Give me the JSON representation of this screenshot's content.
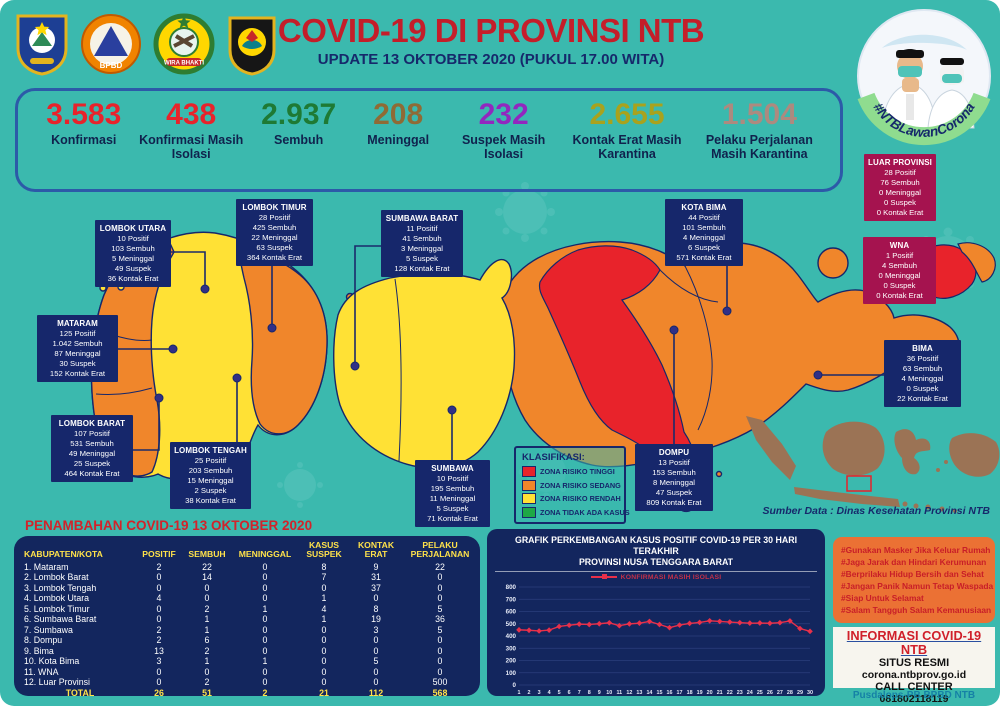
{
  "header": {
    "title": "COVID-19 DI PROVINSI NTB",
    "subtitle": "UPDATE 13 OKTOBER 2020 (PUKUL 17.00 WITA)",
    "logos": [
      "Pemerintah Provinsi NTB",
      "BPBD Nusa Tenggara Barat",
      "Korem Wira Bhakti",
      "Polda Nusa Tenggara Barat"
    ],
    "badge_hashtag": "#NTBLawanCorona"
  },
  "stats": [
    {
      "value": "3.583",
      "label": "Konfirmasi",
      "color": "#e8232b"
    },
    {
      "value": "438",
      "label": "Konfirmasi Masih Isolasi",
      "color": "#e8232b"
    },
    {
      "value": "2.937",
      "label": "Sembuh",
      "color": "#1e7a34"
    },
    {
      "value": "208",
      "label": "Meninggal",
      "color": "#8f6b35"
    },
    {
      "value": "232",
      "label": "Suspek Masih Isolasi",
      "color": "#9227bf"
    },
    {
      "value": "2.655",
      "label": "Kontak Erat Masih Karantina",
      "color": "#a9a21d"
    },
    {
      "value": "1.504",
      "label": "Pelaku Perjalanan Masih Karantina",
      "color": "#ad8a7f"
    }
  ],
  "map": {
    "regions": [
      {
        "name": "LOMBOK UTARA",
        "stats": [
          "10 Positif",
          "103 Sembuh",
          "5 Meninggal",
          "49 Suspek",
          "36 Kontak Erat"
        ]
      },
      {
        "name": "LOMBOK TIMUR",
        "stats": [
          "28 Positif",
          "425 Sembuh",
          "22 Meninggal",
          "63 Suspek",
          "364 Kontak Erat"
        ]
      },
      {
        "name": "SUMBAWA BARAT",
        "stats": [
          "11 Positif",
          "41 Sembuh",
          "3 Meninggal",
          "5 Suspek",
          "128 Kontak Erat"
        ]
      },
      {
        "name": "KOTA BIMA",
        "stats": [
          "44 Positif",
          "101 Sembuh",
          "4 Meninggal",
          "6 Suspek",
          "571 Kontak Erat"
        ]
      },
      {
        "name": "MATARAM",
        "stats": [
          "125 Positif",
          "1.042 Sembuh",
          "87 Meninggal",
          "30 Suspek",
          "152 Kontak Erat"
        ]
      },
      {
        "name": "LOMBOK BARAT",
        "stats": [
          "107 Positif",
          "531 Sembuh",
          "49 Meninggal",
          "25 Suspek",
          "464 Kontak Erat"
        ]
      },
      {
        "name": "LOMBOK TENGAH",
        "stats": [
          "25 Positif",
          "203 Sembuh",
          "15 Meninggal",
          "2 Suspek",
          "38 Kontak Erat"
        ]
      },
      {
        "name": "SUMBAWA",
        "stats": [
          "10 Positif",
          "195 Sembuh",
          "11 Meninggal",
          "5 Suspek",
          "71 Kontak Erat"
        ]
      },
      {
        "name": "DOMPU",
        "stats": [
          "13 Positif",
          "153 Sembuh",
          "8 Meninggal",
          "47 Suspek",
          "809 Kontak Erat"
        ]
      },
      {
        "name": "BIMA",
        "stats": [
          "36 Positif",
          "63 Sembuh",
          "4 Meninggal",
          "0 Suspek",
          "22 Kontak Erat"
        ]
      },
      {
        "name": "LUAR PROVINSI",
        "stats": [
          "28 Positif",
          "76 Sembuh",
          "0 Meninggal",
          "0 Suspek",
          "0 Kontak Erat"
        ]
      },
      {
        "name": "WNA",
        "stats": [
          "1 Positif",
          "4 Sembuh",
          "0 Meninggal",
          "0 Suspek",
          "0 Kontak Erat"
        ]
      }
    ],
    "legend": {
      "title": "KLASIFIKASI:",
      "items": [
        {
          "label": "ZONA RISIKO TINGGI",
          "color": "#e8232b"
        },
        {
          "label": "ZONA RISIKO SEDANG",
          "color": "#f0862b"
        },
        {
          "label": "ZONA RISIKO RENDAH",
          "color": "#ffe135"
        },
        {
          "label": "ZONA TIDAK ADA KASUS",
          "color": "#1ea845"
        }
      ]
    },
    "source": "Sumber Data : Dinas Kesehatan Provinsi NTB"
  },
  "table": {
    "title": "PENAMBAHAN COVID-19 13 OKTOBER 2020",
    "headers": [
      "KABUPATEN/KOTA",
      "POSITIF",
      "SEMBUH",
      "MENINGGAL",
      "KASUS SUSPEK",
      "KONTAK ERAT",
      "PELAKU PERJALANAN"
    ],
    "rows": [
      [
        "1. Mataram",
        "2",
        "22",
        "0",
        "8",
        "9",
        "22"
      ],
      [
        "2. Lombok Barat",
        "0",
        "14",
        "0",
        "7",
        "31",
        "0"
      ],
      [
        "3. Lombok Tengah",
        "0",
        "0",
        "0",
        "0",
        "37",
        "0"
      ],
      [
        "4. Lombok Utara",
        "4",
        "0",
        "0",
        "1",
        "0",
        "0"
      ],
      [
        "5. Lombok Timur",
        "0",
        "2",
        "1",
        "4",
        "8",
        "5"
      ],
      [
        "6. Sumbawa Barat",
        "0",
        "1",
        "0",
        "1",
        "19",
        "36"
      ],
      [
        "7. Sumbawa",
        "2",
        "1",
        "0",
        "0",
        "3",
        "5"
      ],
      [
        "8. Dompu",
        "2",
        "6",
        "0",
        "0",
        "0",
        "0"
      ],
      [
        "9. Bima",
        "13",
        "2",
        "0",
        "0",
        "0",
        "0"
      ],
      [
        "10. Kota Bima",
        "3",
        "1",
        "1",
        "0",
        "5",
        "0"
      ],
      [
        "11. WNA",
        "0",
        "0",
        "0",
        "0",
        "0",
        "0"
      ],
      [
        "12. Luar Provinsi",
        "0",
        "2",
        "0",
        "0",
        "0",
        "500"
      ]
    ],
    "total": [
      "TOTAL",
      "26",
      "51",
      "2",
      "21",
      "112",
      "568"
    ]
  },
  "chart_data": {
    "type": "line",
    "title": "GRAFIK PERKEMBANGAN KASUS POSITIF COVID-19 PER 30 HARI TERAKHIR",
    "title_line2": "PROVINSI NUSA TENGGARA BARAT",
    "xlabel": "",
    "ylabel": "",
    "x": [
      1,
      2,
      3,
      4,
      5,
      6,
      7,
      8,
      9,
      10,
      11,
      12,
      13,
      14,
      15,
      16,
      17,
      18,
      19,
      20,
      21,
      22,
      23,
      24,
      25,
      26,
      27,
      28,
      29,
      30
    ],
    "series": [
      {
        "name": "KONFIRMASI MASIH ISOLASI",
        "color": "#e8304a",
        "values": [
          450,
          447,
          441,
          448,
          478,
          488,
          497,
          494,
          500,
          508,
          484,
          499,
          505,
          519,
          494,
          468,
          489,
          503,
          511,
          524,
          519,
          514,
          509,
          505,
          506,
          504,
          509,
          523,
          461,
          438
        ]
      }
    ],
    "ylim": [
      0,
      800
    ],
    "yticks": [
      0,
      100,
      200,
      300,
      400,
      500,
      600,
      700,
      800
    ],
    "grid": true,
    "legend_position": "top"
  },
  "info": {
    "hashtags": [
      "#Gunakan Masker Jika Keluar Rumah",
      "#Jaga Jarak dan Hindari Kerumunan",
      "#Berprilaku Hidup Bersih dan Sehat",
      "#Jangan Panik Namun Tetap Waspada",
      "#Siap Untuk Selamat",
      "#Salam Tangguh Salam Kemanusiaan"
    ],
    "title": "INFORMASI COVID-19 NTB",
    "situs_label": "SITUS RESMI",
    "situs": "corona.ntbprov.go.id",
    "call_label": "CALL CENTER",
    "call": "081802118119",
    "footer": "Pusdalops-PB BPBD NTB"
  }
}
